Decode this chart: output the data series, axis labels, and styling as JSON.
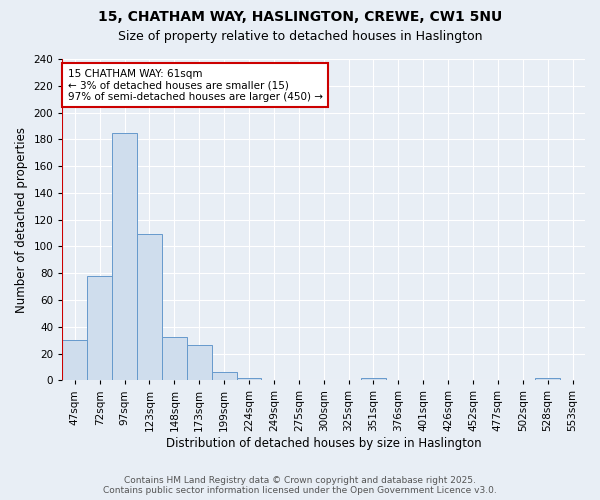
{
  "title_line1": "15, CHATHAM WAY, HASLINGTON, CREWE, CW1 5NU",
  "title_line2": "Size of property relative to detached houses in Haslington",
  "xlabel": "Distribution of detached houses by size in Haslington",
  "ylabel": "Number of detached properties",
  "categories": [
    "47sqm",
    "72sqm",
    "97sqm",
    "123sqm",
    "148sqm",
    "173sqm",
    "199sqm",
    "224sqm",
    "249sqm",
    "275sqm",
    "300sqm",
    "325sqm",
    "351sqm",
    "376sqm",
    "401sqm",
    "426sqm",
    "452sqm",
    "477sqm",
    "502sqm",
    "528sqm",
    "553sqm"
  ],
  "values": [
    30,
    78,
    185,
    109,
    32,
    26,
    6,
    2,
    0,
    0,
    0,
    0,
    2,
    0,
    0,
    0,
    0,
    0,
    0,
    2,
    0
  ],
  "bar_color": "#cfdded",
  "bar_edge_color": "#6699cc",
  "highlight_color": "#cc0000",
  "annotation_text": "15 CHATHAM WAY: 61sqm\n← 3% of detached houses are smaller (15)\n97% of semi-detached houses are larger (450) →",
  "annotation_box_color": "#ffffff",
  "annotation_box_edge": "#cc0000",
  "ylim": [
    0,
    240
  ],
  "yticks": [
    0,
    20,
    40,
    60,
    80,
    100,
    120,
    140,
    160,
    180,
    200,
    220,
    240
  ],
  "bg_color": "#e8eef5",
  "grid_color": "#ffffff",
  "footer_line1": "Contains HM Land Registry data © Crown copyright and database right 2025.",
  "footer_line2": "Contains public sector information licensed under the Open Government Licence v3.0.",
  "title_fontsize": 10,
  "subtitle_fontsize": 9,
  "axis_label_fontsize": 8.5,
  "tick_fontsize": 7.5,
  "annotation_fontsize": 7.5,
  "footer_fontsize": 6.5
}
